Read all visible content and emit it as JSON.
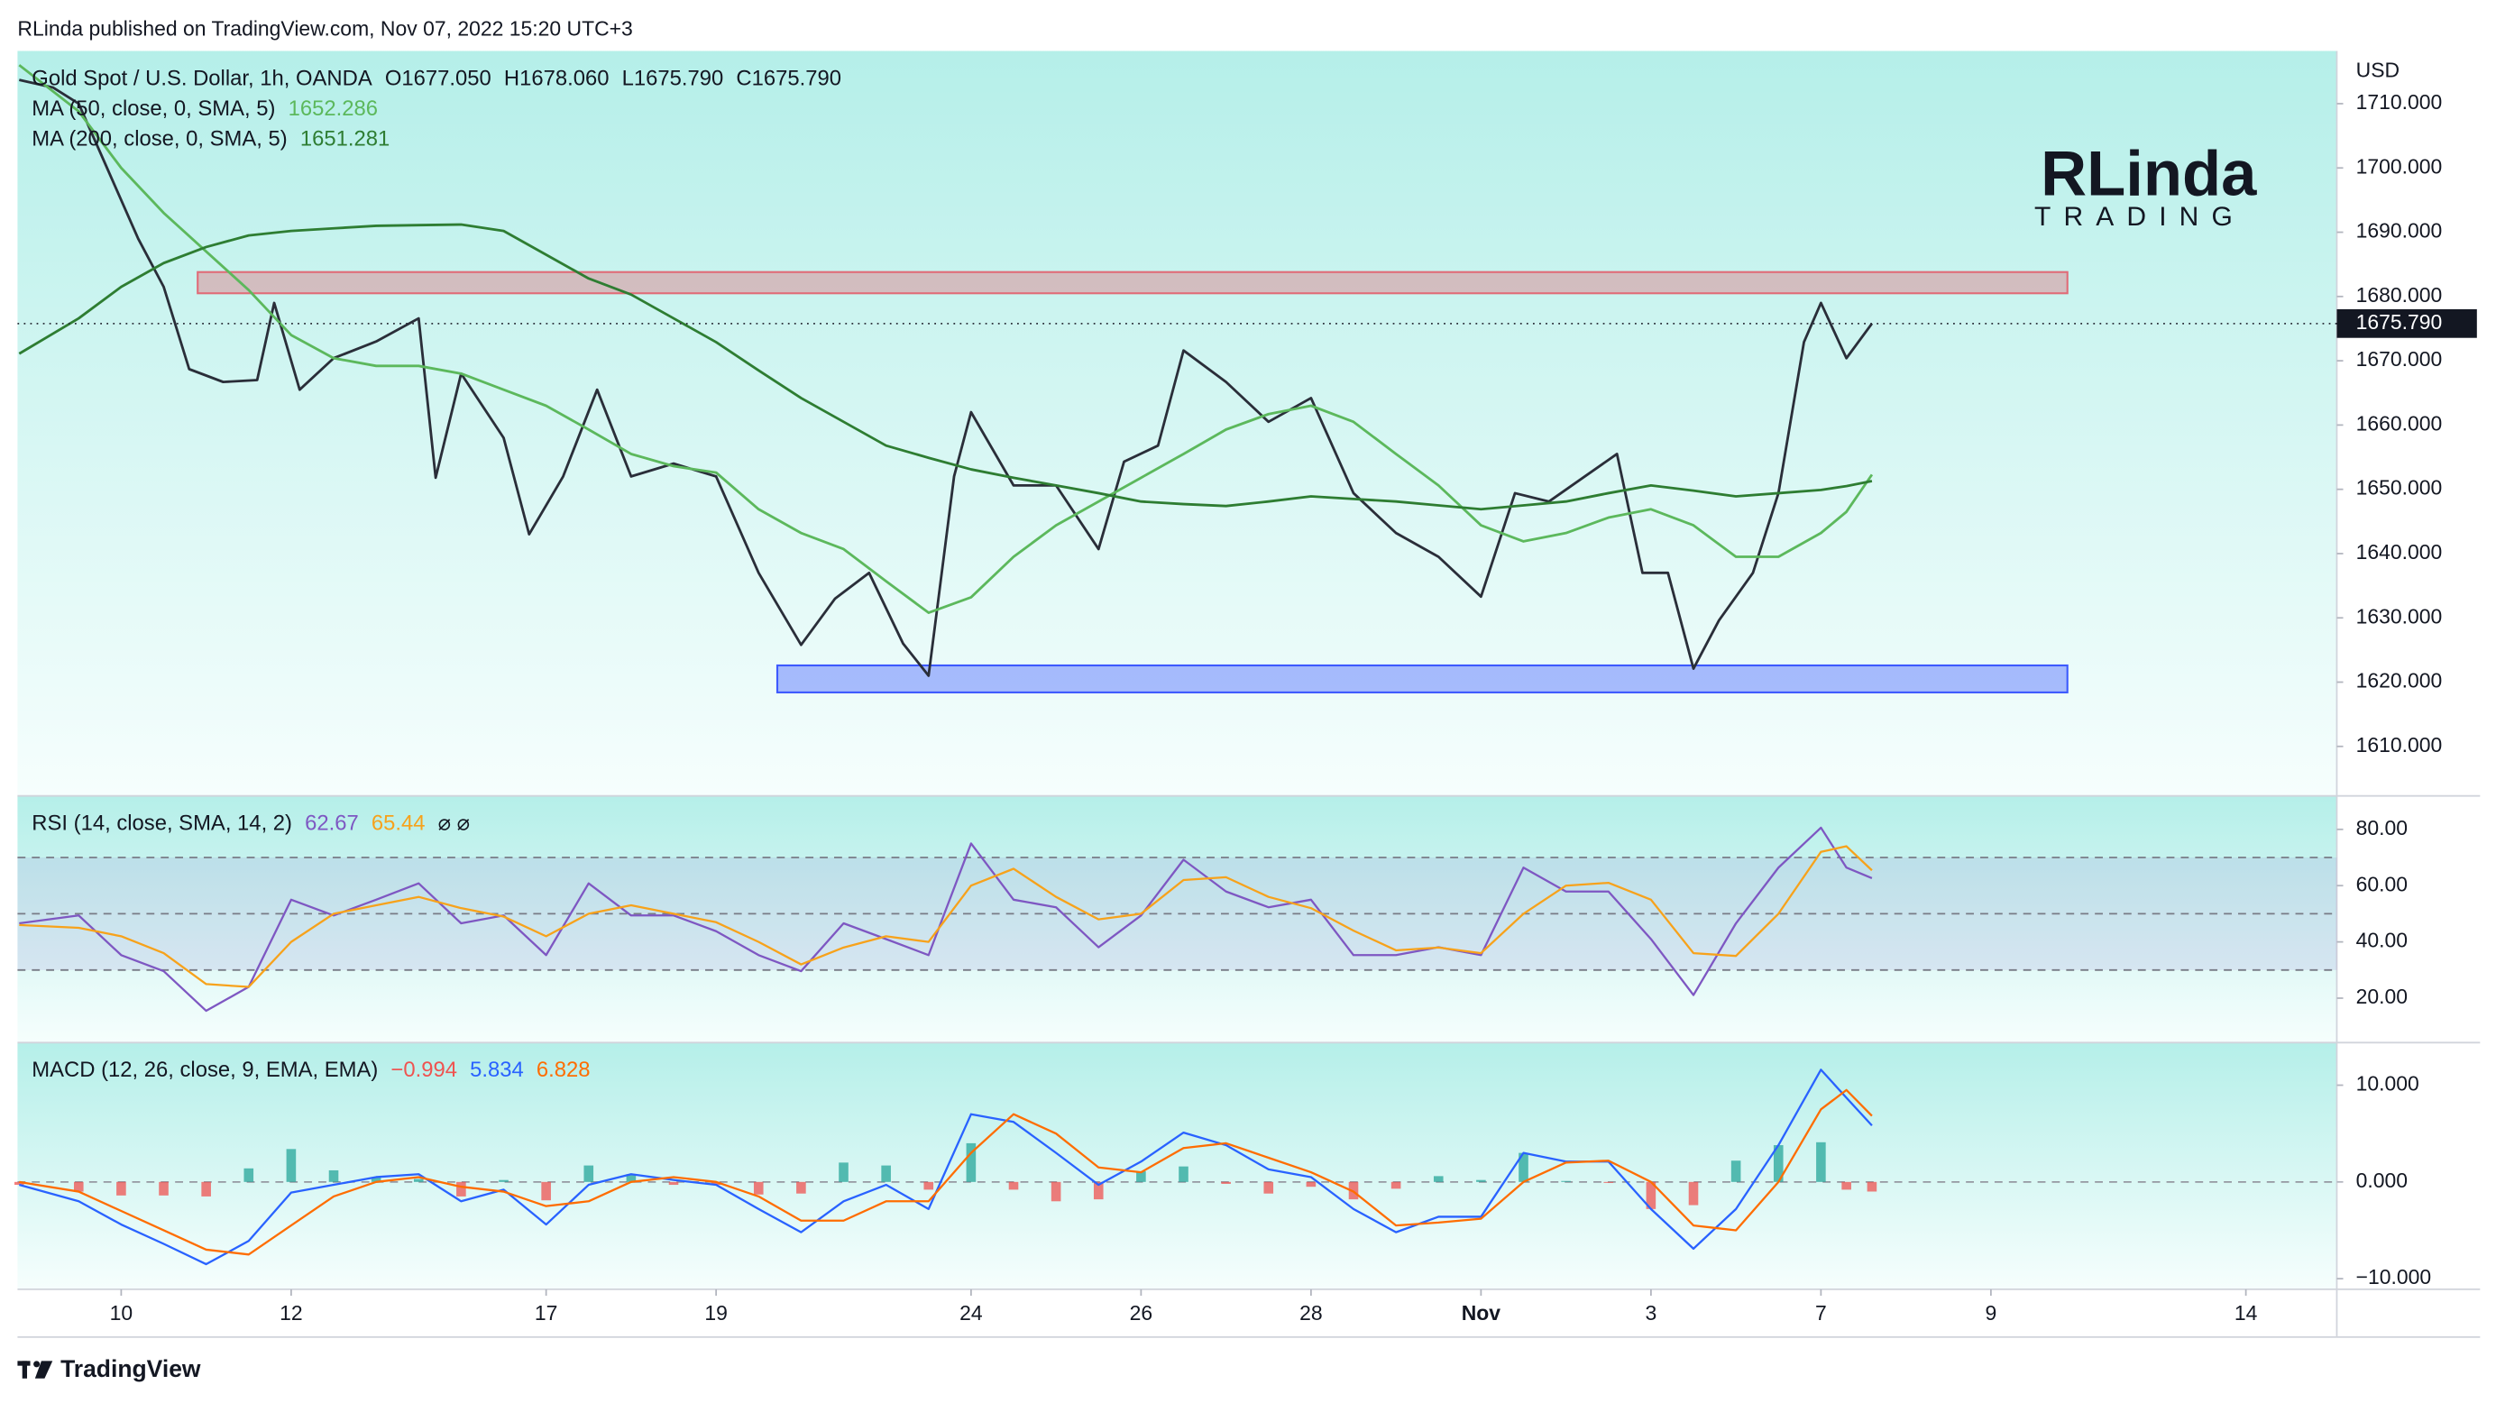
{
  "header": "RLinda published on TradingView.com, Nov 07, 2022 15:20 UTC+3",
  "footer": "TradingView",
  "logo": {
    "name": "RLinda",
    "tagline": "TRADING"
  },
  "chart_data": [
    {
      "type": "line",
      "title": "Gold Spot / U.S. Dollar, 1h, OANDA",
      "ohlc": [
        {
          "value": 1677.05,
          "label": "O1677.050"
        },
        {
          "value": 1678.06,
          "label": "H1678.060"
        },
        {
          "value": 1675.79,
          "label": "L1675.790"
        },
        {
          "value": 1675.79,
          "label": "C1675.790"
        }
      ],
      "y_unit": "USD",
      "x": [
        -1.2,
        -0.5,
        0,
        0.5,
        1,
        1.5,
        2,
        2.5,
        3,
        3.5,
        4,
        4.5,
        5,
        5.5,
        6,
        6.5,
        7,
        7.5,
        8,
        8.5,
        9,
        9.5,
        10,
        10.5,
        11,
        11.5,
        12,
        12.5,
        13,
        13.5,
        14,
        14.5,
        15,
        15.5,
        16,
        16.5,
        17,
        17.5,
        18,
        18.5,
        19,
        19.5,
        20,
        20.3,
        20.6
      ],
      "xlim": [
        -1.22,
        26.07
      ],
      "ylim": [
        1602.3,
        1718.2
      ],
      "yticks": [
        {
          "value": 1610,
          "label": "1610.000"
        },
        {
          "value": 1620,
          "label": "1620.000"
        },
        {
          "value": 1630,
          "label": "1630.000"
        },
        {
          "value": 1640,
          "label": "1640.000"
        },
        {
          "value": 1650,
          "label": "1650.000"
        },
        {
          "value": 1660,
          "label": "1660.000"
        },
        {
          "value": 1670,
          "label": "1670.000"
        },
        {
          "value": 1680,
          "label": "1680.000"
        },
        {
          "value": 1690,
          "label": "1690.000"
        },
        {
          "value": 1700,
          "label": "1700.000"
        },
        {
          "value": 1710,
          "label": "1710.000"
        }
      ],
      "last_price": {
        "value": 1675.79,
        "label": "1675.790"
      },
      "zones": [
        {
          "x": [
            0.9,
            22.9
          ],
          "y": [
            1680.5,
            1683.8
          ],
          "color": "#e06c78"
        },
        {
          "x": [
            7.72,
            22.9
          ],
          "y": [
            1618.4,
            1622.6
          ],
          "color": "#3d5afe"
        }
      ],
      "series": [
        {
          "color": "#2a2e39",
          "x": [
            -1.2,
            -0.8,
            -0.5,
            -0.2,
            0.2,
            0.5,
            0.8,
            1.2,
            1.6,
            1.8,
            2.1,
            2.5,
            3.0,
            3.5,
            3.7,
            4.0,
            4.5,
            4.8,
            5.2,
            5.6,
            6.0,
            6.5,
            7.0,
            7.5,
            8.0,
            8.4,
            8.8,
            9.2,
            9.5,
            9.8,
            10.0,
            10.5,
            11.0,
            11.5,
            11.8,
            12.2,
            12.5,
            13.0,
            13.5,
            14.0,
            14.5,
            15.0,
            15.5,
            16.0,
            16.4,
            16.8,
            17.2,
            17.6,
            17.9,
            18.2,
            18.5,
            18.8,
            19.2,
            19.5,
            19.8,
            20.0,
            20.3,
            20.6
          ],
          "values": [
            1713.7,
            1712.5,
            1710,
            1701,
            1689,
            1681.5,
            1668.7,
            1666.7,
            1667,
            1679,
            1665.5,
            1670.4,
            1673,
            1676.6,
            1651.8,
            1668,
            1658,
            1643,
            1652,
            1665.5,
            1652,
            1654,
            1652,
            1637,
            1625.8,
            1633,
            1637,
            1626,
            1621,
            1652,
            1662,
            1650.6,
            1650.6,
            1640.7,
            1654.3,
            1656.8,
            1671.6,
            1666.7,
            1660.5,
            1664.2,
            1649.4,
            1643.2,
            1639.5,
            1633.3,
            1649.4,
            1648.1,
            1651.8,
            1655.5,
            1637,
            1637,
            1622.1,
            1629.6,
            1637,
            1649.4,
            1672.9,
            1679,
            1670.4,
            1675.79
          ]
        },
        {
          "name": "MA (50, close, 0, SMA, 5)",
          "color": "#5cb85c",
          "values": [
            1716,
            1708.8,
            1700,
            1693,
            1687,
            1681,
            1674,
            1670.4,
            1669.2,
            1669.2,
            1668,
            1665.5,
            1663,
            1659.3,
            1655.5,
            1653.6,
            1652.6,
            1646.9,
            1643.2,
            1640.7,
            1635.7,
            1630.8,
            1633.2,
            1639.5,
            1644.4,
            1648.1,
            1651.8,
            1655.5,
            1659.3,
            1661.7,
            1663,
            1660.5,
            1655.5,
            1650.6,
            1644.4,
            1641.9,
            1643.2,
            1645.6,
            1646.9,
            1644.4,
            1639.5,
            1639.5,
            1643.2,
            1646.5,
            1652.286
          ]
        },
        {
          "name": "MA (200, close, 0, SMA, 5)",
          "color": "#2e7d32",
          "values": [
            1671.1,
            1676.6,
            1681.5,
            1685.2,
            1687.7,
            1689.5,
            1690.2,
            1690.6,
            1691,
            1691.1,
            1691.2,
            1690.2,
            1686.5,
            1682.8,
            1680.3,
            1676.6,
            1672.9,
            1668.5,
            1664.2,
            1660.5,
            1656.8,
            1654.9,
            1653.1,
            1651.8,
            1650.6,
            1649.4,
            1648.1,
            1647.7,
            1647.4,
            1648.1,
            1648.9,
            1648.5,
            1648.1,
            1647.5,
            1646.9,
            1647.5,
            1648.1,
            1649.4,
            1650.6,
            1649.8,
            1648.9,
            1649.4,
            1649.9,
            1650.5,
            1651.281
          ]
        }
      ]
    },
    {
      "type": "line",
      "title": "RSI (14, close, SMA, 14, 2)",
      "legend_suffix": "⌀ ⌀",
      "x": [
        -1.2,
        -0.5,
        0,
        0.5,
        1,
        1.5,
        2,
        2.5,
        3,
        3.5,
        4,
        4.5,
        5,
        5.5,
        6,
        6.5,
        7,
        7.5,
        8,
        8.5,
        9,
        9.5,
        10,
        10.5,
        11,
        11.5,
        12,
        12.5,
        13,
        13.5,
        14,
        14.5,
        15,
        15.5,
        16,
        16.5,
        17,
        17.5,
        18,
        18.5,
        19,
        19.5,
        20,
        20.3,
        20.6
      ],
      "xlim": [
        -1.22,
        26.07
      ],
      "ylim": [
        4.2,
        91.9
      ],
      "yticks": [
        {
          "value": 20,
          "label": "20.00"
        },
        {
          "value": 40,
          "label": "40.00"
        },
        {
          "value": 60,
          "label": "60.00"
        },
        {
          "value": 80,
          "label": "80.00"
        }
      ],
      "bands": [
        70,
        50,
        30
      ],
      "band_color": "#7e57c2",
      "series": [
        {
          "color": "#7e57c2",
          "values": [
            46.6,
            49.4,
            35.3,
            29.6,
            15.5,
            24,
            55,
            49.4,
            55,
            60.8,
            46.6,
            49.4,
            35.3,
            60.8,
            49.4,
            49.4,
            43.8,
            35.3,
            29.6,
            46.6,
            41,
            35.3,
            75,
            55,
            52.3,
            38.1,
            49.4,
            69.2,
            57.9,
            52.3,
            55,
            35.3,
            35.3,
            38.1,
            35.3,
            66.4,
            57.9,
            57.9,
            41,
            21.1,
            46.6,
            66.4,
            80.6,
            66.4,
            62.67
          ]
        },
        {
          "color": "#f7a21b",
          "values": [
            46,
            45,
            42,
            36,
            25,
            24,
            40,
            50,
            53,
            56,
            52,
            49,
            42,
            50,
            53,
            50,
            47,
            40,
            32,
            38,
            42,
            40,
            60,
            66,
            56,
            48,
            50,
            62,
            63,
            56,
            52,
            44,
            37,
            38,
            36,
            50,
            60,
            61,
            55,
            36,
            35,
            50,
            72,
            74,
            65.44
          ]
        }
      ]
    },
    {
      "type": "line",
      "title": "MACD (12, 26, close, 9, EMA, EMA)",
      "x": [
        -1.2,
        -0.5,
        0,
        0.5,
        1,
        1.5,
        2,
        2.5,
        3,
        3.5,
        4,
        4.5,
        5,
        5.5,
        6,
        6.5,
        7,
        7.5,
        8,
        8.5,
        9,
        9.5,
        10,
        10.5,
        11,
        11.5,
        12,
        12.5,
        13,
        13.5,
        14,
        14.5,
        15,
        15.5,
        16,
        16.5,
        17,
        17.5,
        18,
        18.5,
        19,
        19.5,
        20,
        20.3,
        20.6
      ],
      "xlim": [
        -1.22,
        26.07
      ],
      "ylim": [
        -11.1,
        14.4
      ],
      "yticks": [
        {
          "value": -10,
          "label": "−10.000"
        },
        {
          "value": 0,
          "label": "0.000"
        },
        {
          "value": 10,
          "label": "10.000"
        }
      ],
      "reference_line": 0,
      "xticks": [
        {
          "value": 0,
          "label": "10"
        },
        {
          "value": 2,
          "label": "12"
        },
        {
          "value": 5,
          "label": "17"
        },
        {
          "value": 7,
          "label": "19"
        },
        {
          "value": 10,
          "label": "24"
        },
        {
          "value": 12,
          "label": "26"
        },
        {
          "value": 14,
          "label": "28"
        },
        {
          "value": 16,
          "label": "Nov"
        },
        {
          "value": 18,
          "label": "3"
        },
        {
          "value": 20,
          "label": "7"
        },
        {
          "value": 22,
          "label": "9"
        },
        {
          "value": 25,
          "label": "14"
        }
      ],
      "series": [
        {
          "type": "bar",
          "color": "#ef5350",
          "up_color": "#26a69a",
          "values": [
            -0.3,
            -1,
            -1.4,
            -1.4,
            -1.5,
            1.4,
            3.4,
            1.2,
            0.5,
            0.3,
            -1.5,
            0.2,
            -1.9,
            1.7,
            0.8,
            -0.3,
            -0.3,
            -1.3,
            -1.2,
            2,
            1.7,
            -0.8,
            4,
            -0.8,
            -2,
            -1.8,
            1.1,
            1.6,
            -0.2,
            -1.2,
            -0.5,
            -1.8,
            -0.7,
            0.6,
            0.2,
            3,
            0.1,
            -0.1,
            -2.8,
            -2.4,
            2.2,
            3.8,
            4.1,
            -0.8,
            -0.994
          ],
          "value_labels": [
            null,
            null,
            null,
            null,
            null,
            null,
            null,
            null,
            null,
            null,
            null,
            null,
            null,
            null,
            null,
            null,
            null,
            null,
            null,
            null,
            null,
            null,
            null,
            null,
            null,
            null,
            null,
            null,
            null,
            null,
            null,
            null,
            null,
            null,
            null,
            null,
            null,
            null,
            null,
            null,
            null,
            null,
            null,
            null,
            "−0.994"
          ]
        },
        {
          "color": "#2962ff",
          "values": [
            -0.3,
            -2,
            -4.4,
            -6.4,
            -8.5,
            -6.1,
            -1.1,
            -0.3,
            0.5,
            0.8,
            -2,
            -0.8,
            -4.4,
            -0.3,
            0.8,
            0.2,
            -0.3,
            -2.8,
            -5.2,
            -2,
            -0.3,
            -2.8,
            7,
            6.2,
            3,
            -0.3,
            2.1,
            5.1,
            3.8,
            1.3,
            0.5,
            -2.8,
            -5.2,
            -3.6,
            -3.6,
            3,
            2.1,
            2.1,
            -2.8,
            -6.9,
            -2.8,
            3.8,
            11.6,
            8.7,
            5.834
          ]
        },
        {
          "color": "#ff6d00",
          "values": [
            0,
            -1,
            -3,
            -5,
            -7,
            -7.5,
            -4.5,
            -1.5,
            0,
            0.5,
            -0.5,
            -1,
            -2.5,
            -2,
            0,
            0.5,
            0,
            -1.5,
            -4,
            -4,
            -2,
            -2,
            3,
            7,
            5,
            1.5,
            1,
            3.5,
            4,
            2.5,
            1,
            -1,
            -4.5,
            -4.2,
            -3.8,
            0,
            2,
            2.2,
            0,
            -4.5,
            -5,
            0,
            7.5,
            9.5,
            6.828
          ]
        }
      ]
    }
  ]
}
